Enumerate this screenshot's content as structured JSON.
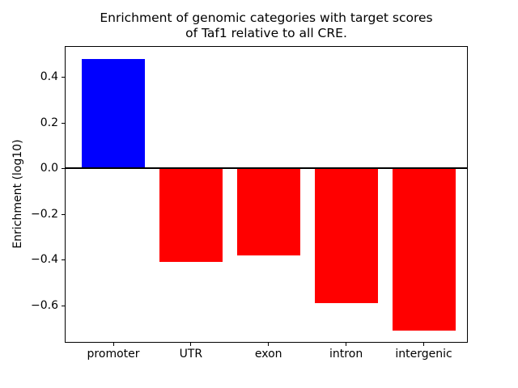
{
  "figure": {
    "background": "#ffffff"
  },
  "chart_data": {
    "type": "bar",
    "title": "Enrichment of genomic categories with target scores of Taf1 relative to all CRE.",
    "title_lines": [
      "Enrichment of genomic categories with target scores",
      "of Taf1 relative to all CRE."
    ],
    "xlabel": "",
    "ylabel": "Enrichment (log10)",
    "categories": [
      "promoter",
      "UTR",
      "exon",
      "intron",
      "intergenic"
    ],
    "values": [
      0.48,
      -0.41,
      -0.38,
      -0.59,
      -0.71
    ],
    "positive_color": "#0000ff",
    "negative_color": "#ff0000",
    "ylim": [
      -0.763,
      0.536
    ],
    "yticks": [
      0.4,
      0.2,
      0.0,
      -0.2,
      -0.4,
      -0.6
    ],
    "ytick_labels": [
      "0.4",
      "0.2",
      "0.0",
      "−0.2",
      "−0.4",
      "−0.6"
    ],
    "grid": false,
    "zero_line": true,
    "legend": "none"
  }
}
